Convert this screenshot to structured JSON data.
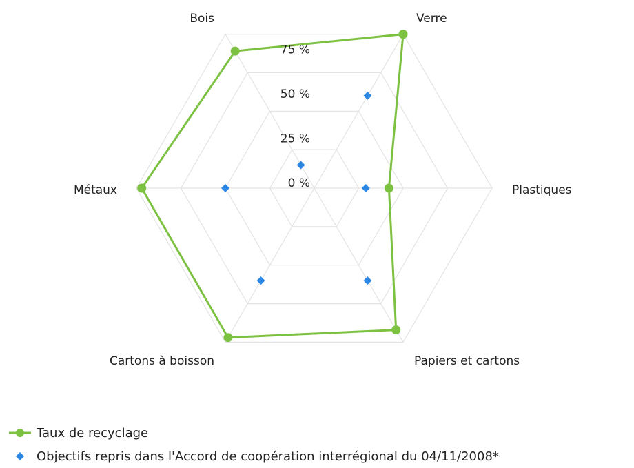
{
  "chart_data": {
    "type": "radar",
    "categories": [
      "Verre",
      "Plastiques",
      "Papiers et cartons",
      "Cartons à boisson",
      "Métaux",
      "Bois"
    ],
    "radial_ticks": [
      {
        "value": 0,
        "label": "0 %"
      },
      {
        "value": 25,
        "label": "25 %"
      },
      {
        "value": 50,
        "label": "50 %"
      },
      {
        "value": 75,
        "label": "75 %"
      },
      {
        "value": 100,
        "label": ""
      }
    ],
    "rlim": [
      0,
      100
    ],
    "grid": true,
    "legend_position": "bottom-left",
    "series": [
      {
        "name": "Taux de recyclage",
        "style": "line-markers",
        "color": "#7dc142",
        "values": [
          100,
          42,
          92,
          97,
          97,
          89
        ]
      },
      {
        "name": "Objectifs repris dans l'Accord de coopération interrégional du 04/11/2008*",
        "style": "markers",
        "marker": "diamond",
        "color": "#2b87e3",
        "values": [
          60,
          29,
          60,
          60,
          50,
          15
        ]
      }
    ]
  }
}
